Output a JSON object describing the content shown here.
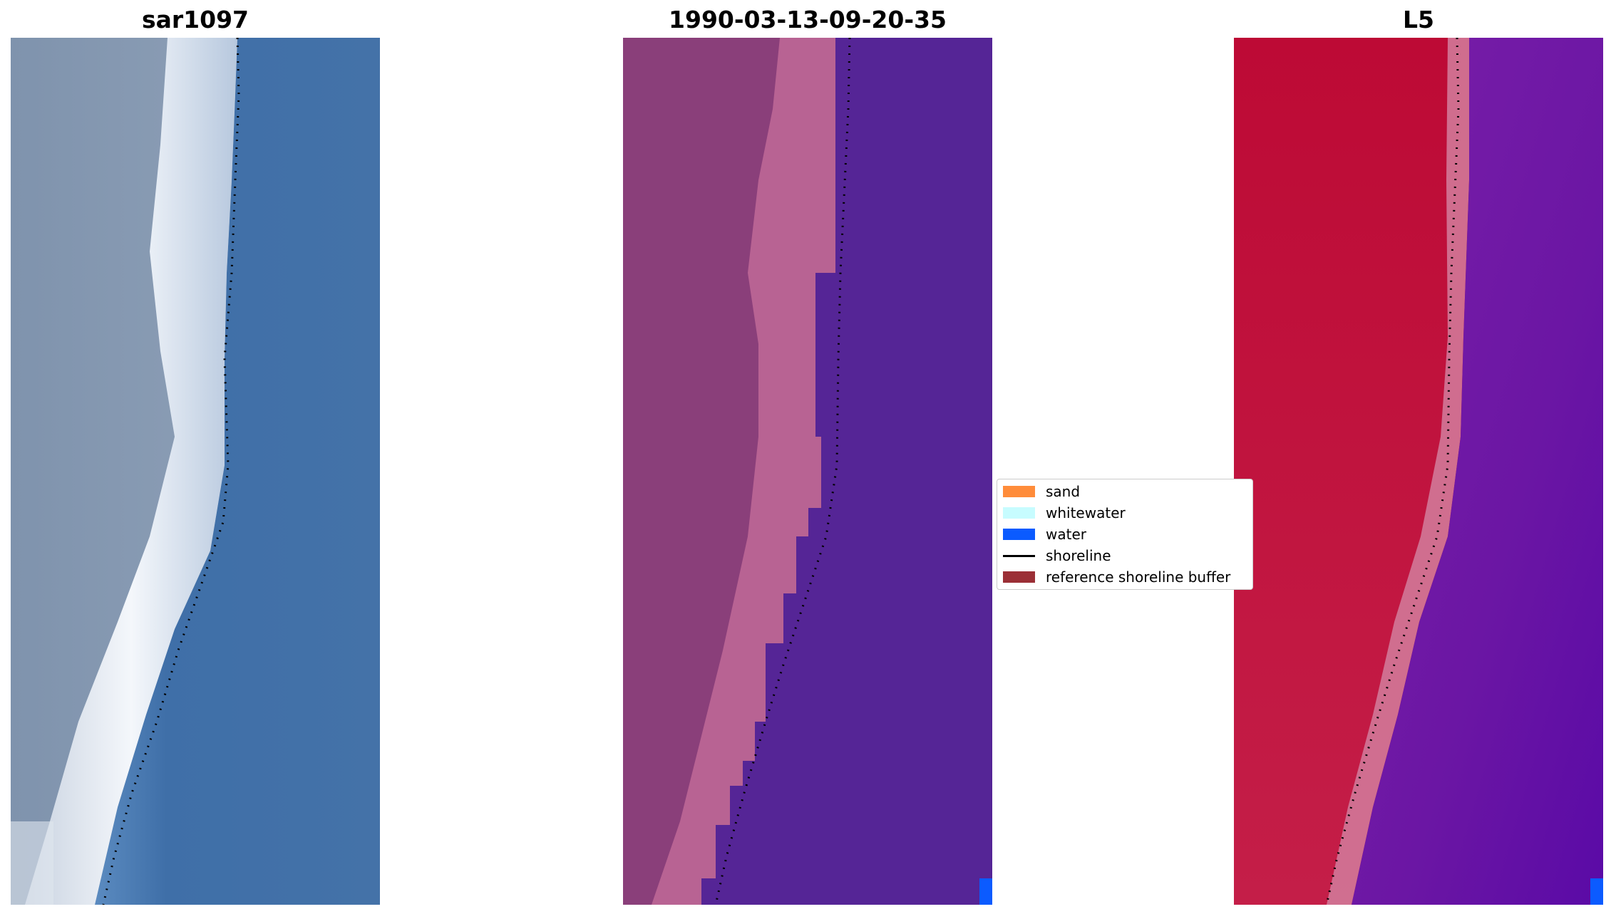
{
  "panels": [
    {
      "title": "sar1097",
      "kind": "rgb-image",
      "colors": {
        "land": "#7f93ad",
        "beach": "#e8eef5",
        "water": "#3f6fa8"
      }
    },
    {
      "title": "1990-03-13-09-20-35",
      "kind": "classified-image",
      "colors": {
        "land": "#8a3f7a",
        "beach": "#b86393",
        "water": "#552596",
        "water_class_patch": "#0b5bff"
      }
    },
    {
      "title": "L5",
      "kind": "index-image",
      "colors": {
        "land": "#c2163c",
        "beach": "#d27898",
        "water": "#6b16a4",
        "water_class_patch": "#0b5bff"
      }
    }
  ],
  "legend": {
    "items": [
      {
        "label": "sand",
        "color": "#ff8c3a",
        "marker": "patch"
      },
      {
        "label": "whitewater",
        "color": "#c7fcff",
        "marker": "patch"
      },
      {
        "label": "water",
        "color": "#0b5bff",
        "marker": "patch"
      },
      {
        "label": "shoreline",
        "color": "#000000",
        "marker": "line"
      },
      {
        "label": "reference shoreline buffer",
        "color": "#9b2f36",
        "marker": "patch"
      }
    ]
  },
  "shoreline_color": "#000000"
}
